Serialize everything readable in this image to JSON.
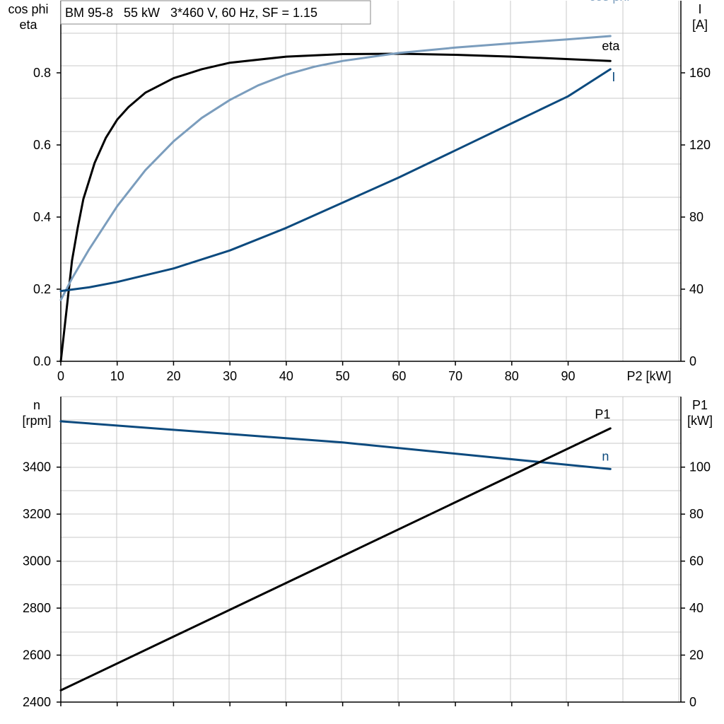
{
  "chart_data": [
    {
      "type": "line",
      "title": "BM 95-8   55 kW   3*460 V, 60 Hz, SF = 1.15",
      "xlabel": "P2 [kW]",
      "ylabel_left": [
        "cos phi",
        "eta"
      ],
      "ylabel_right": [
        "I",
        "[A]"
      ],
      "xlim": [
        0,
        110
      ],
      "ylim_left": [
        0,
        1.0
      ],
      "ylim_right": [
        0,
        200
      ],
      "x_ticks": [
        0,
        10,
        20,
        30,
        40,
        50,
        60,
        70,
        80,
        90
      ],
      "y_ticks_left": [
        "0.0",
        "0.2",
        "0.4",
        "0.6",
        "0.8"
      ],
      "y_ticks_right": [
        "0",
        "40",
        "80",
        "120",
        "160"
      ],
      "grid": true,
      "series": [
        {
          "name": "eta",
          "axis": "left",
          "color": "#000000",
          "x": [
            0,
            1,
            2,
            3,
            4,
            5,
            6,
            8,
            10,
            12,
            15,
            20,
            25,
            30,
            40,
            50,
            60,
            70,
            80,
            90,
            97.5
          ],
          "y": [
            0.0,
            0.14,
            0.28,
            0.37,
            0.45,
            0.5,
            0.55,
            0.62,
            0.67,
            0.705,
            0.745,
            0.785,
            0.81,
            0.828,
            0.845,
            0.852,
            0.853,
            0.85,
            0.845,
            0.838,
            0.833
          ]
        },
        {
          "name": "cos phi",
          "axis": "left",
          "color": "#7b9dbd",
          "x": [
            0,
            2,
            5,
            10,
            15,
            20,
            25,
            30,
            35,
            40,
            45,
            50,
            60,
            70,
            80,
            90,
            97.5
          ],
          "y": [
            0.17,
            0.23,
            0.31,
            0.43,
            0.53,
            0.61,
            0.675,
            0.725,
            0.765,
            0.795,
            0.817,
            0.833,
            0.855,
            0.87,
            0.882,
            0.893,
            0.902
          ]
        },
        {
          "name": "I",
          "axis": "right",
          "color": "#0c4a7e",
          "x": [
            0,
            5,
            10,
            20,
            30,
            40,
            50,
            60,
            70,
            80,
            90,
            97.5
          ],
          "y": [
            39,
            41,
            44,
            51.5,
            61.5,
            74,
            88,
            102,
            117,
            132,
            147,
            162
          ]
        }
      ]
    },
    {
      "type": "line",
      "title": "",
      "xlabel": "",
      "ylabel_left": [
        "n",
        "[rpm]"
      ],
      "ylabel_right": [
        "P1",
        "[kW]"
      ],
      "xlim": [
        0,
        110
      ],
      "ylim_left": [
        2400,
        3700
      ],
      "ylim_right": [
        0,
        130
      ],
      "x_ticks": [
        0,
        10,
        20,
        30,
        40,
        50,
        60,
        70,
        80,
        90
      ],
      "y_ticks_left": [
        "2400",
        "2600",
        "2800",
        "3000",
        "3200",
        "3400"
      ],
      "y_ticks_right": [
        "0",
        "20",
        "40",
        "60",
        "80",
        "100"
      ],
      "grid": true,
      "series": [
        {
          "name": "n",
          "axis": "left",
          "color": "#0c4a7e",
          "x": [
            0,
            50,
            97.5
          ],
          "y": [
            3595,
            3505,
            3392
          ]
        },
        {
          "name": "P1",
          "axis": "right",
          "color": "#000000",
          "x": [
            0,
            97.5
          ],
          "y": [
            5,
            116.5
          ]
        }
      ]
    }
  ]
}
